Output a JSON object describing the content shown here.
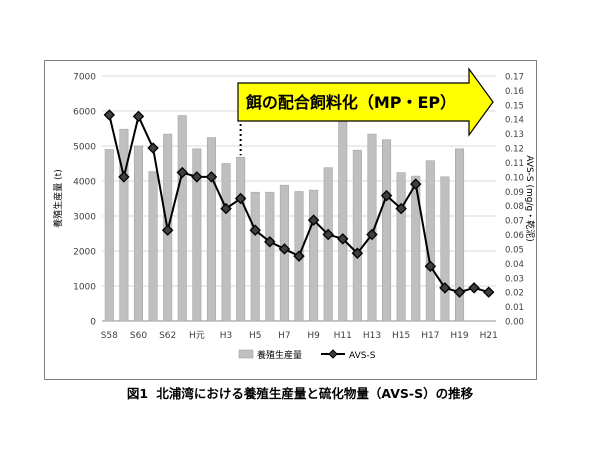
{
  "caption": {
    "figure_no": "図1",
    "text": "北浦湾における養殖生産量と硫化物量（AVS-S）の推移"
  },
  "banner": {
    "text": "餌の配合飼料化（MP・EP）",
    "fill": "#ffff00",
    "stroke": "#000000"
  },
  "chart_data": {
    "type": "bar",
    "categories": [
      "S58",
      "S59",
      "S60",
      "S61",
      "S62",
      "S63",
      "H元",
      "H2",
      "H3",
      "H4",
      "H5",
      "H6",
      "H7",
      "H8",
      "H9",
      "H10",
      "H11",
      "H12",
      "H13",
      "H14",
      "H15",
      "H16",
      "H17",
      "H18",
      "H19",
      "H20",
      "H21"
    ],
    "x_tick_labels": [
      "S58",
      "",
      "S60",
      "",
      "S62",
      "",
      "H元",
      "",
      "H3",
      "",
      "H5",
      "",
      "H7",
      "",
      "H9",
      "",
      "H11",
      "",
      "H13",
      "",
      "H15",
      "",
      "H17",
      "",
      "H19",
      "",
      "H21"
    ],
    "series": [
      {
        "name": "養殖生産量",
        "type": "bar",
        "axis": "left",
        "color": "#bfbfbf",
        "values": [
          4900,
          5480,
          5000,
          4270,
          5340,
          5870,
          4920,
          5240,
          4500,
          4680,
          3680,
          3680,
          3880,
          3700,
          3740,
          4380,
          5720,
          4880,
          5340,
          5180,
          4240,
          4140,
          4580,
          4120,
          4920,
          null,
          null
        ]
      },
      {
        "name": "AVS-S",
        "type": "line",
        "axis": "right",
        "color": "#000000",
        "marker": "diamond",
        "values": [
          0.143,
          0.1,
          0.142,
          0.12,
          0.063,
          0.103,
          0.1,
          0.1,
          0.078,
          0.085,
          0.063,
          0.055,
          0.05,
          0.045,
          0.07,
          0.06,
          0.057,
          0.047,
          0.06,
          0.087,
          0.078,
          0.095,
          0.038,
          0.023,
          0.02,
          0.023,
          0.02
        ]
      }
    ],
    "y_left": {
      "label": "養殖生産量 (t)",
      "min": 0,
      "max": 7000,
      "ticks": [
        "0",
        "1000",
        "2000",
        "3000",
        "4000",
        "5000",
        "6000",
        "7000"
      ]
    },
    "y_right": {
      "label": "AVS-S (mg/g・乾泥)",
      "min": 0,
      "max": 0.17,
      "ticks": [
        "0.00",
        "0.01",
        "0.02",
        "0.03",
        "0.04",
        "0.05",
        "0.06",
        "0.07",
        "0.08",
        "0.09",
        "0.10",
        "0.11",
        "0.12",
        "0.13",
        "0.14",
        "0.15",
        "0.16",
        "0.17"
      ]
    },
    "banner_start_category": "H4",
    "grid": true,
    "legend": "bottom"
  }
}
